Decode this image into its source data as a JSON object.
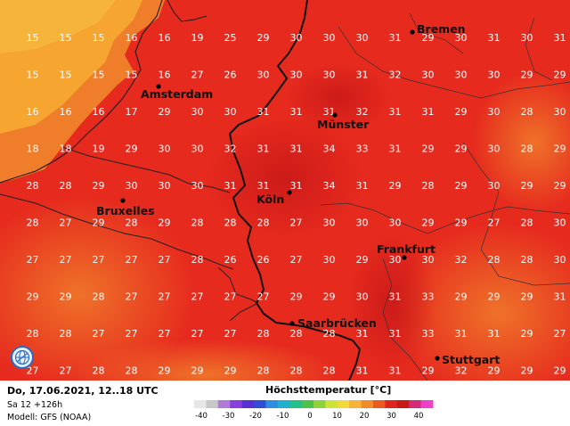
{
  "footer": {
    "date_line": "Do, 17.06.2021, 12..18 UTC",
    "run_line": "Sa 12 +126h",
    "model_line": "Modell: GFS (NOAA)"
  },
  "legend": {
    "title": "Höchsttemperatur [°C]",
    "ticks": [
      "-40",
      "-30",
      "-20",
      "-10",
      "0",
      "10",
      "20",
      "30",
      "40"
    ],
    "colors": [
      "#e6e6e6",
      "#c8c8c8",
      "#b07ad8",
      "#8a3ee0",
      "#5a2fd8",
      "#2f4ed8",
      "#2d8de0",
      "#1fb0d0",
      "#22c08a",
      "#4cc24a",
      "#8fd23a",
      "#cfe23a",
      "#f5d93a",
      "#f7b23a",
      "#f28a2a",
      "#ec5a22",
      "#e0251e",
      "#c81818",
      "#d42a78",
      "#ee40c8"
    ]
  },
  "cities": [
    {
      "name": "Bremen"
    },
    {
      "name": "Amsterdam"
    },
    {
      "name": "Münster"
    },
    {
      "name": "Köln"
    },
    {
      "name": "Bruxelles"
    },
    {
      "name": "Frankfurt"
    },
    {
      "name": "Saarbrücken"
    },
    {
      "name": "Stuttgart"
    }
  ],
  "grid_values": [
    [
      "15",
      "15",
      "15",
      "16",
      "16",
      "19",
      "25",
      "29",
      "30",
      "30",
      "30",
      "31",
      "29",
      "30",
      "31",
      "30",
      "31"
    ],
    [
      "15",
      "15",
      "15",
      "15",
      "16",
      "27",
      "26",
      "30",
      "30",
      "30",
      "31",
      "32",
      "30",
      "30",
      "30",
      "29",
      "29"
    ],
    [
      "16",
      "16",
      "16",
      "17",
      "29",
      "30",
      "30",
      "31",
      "31",
      "31",
      "32",
      "31",
      "31",
      "29",
      "30",
      "28",
      "30"
    ],
    [
      "18",
      "18",
      "19",
      "29",
      "30",
      "30",
      "32",
      "31",
      "31",
      "34",
      "33",
      "31",
      "29",
      "29",
      "30",
      "28",
      "29"
    ],
    [
      "28",
      "28",
      "29",
      "30",
      "30",
      "30",
      "31",
      "31",
      "31",
      "34",
      "31",
      "29",
      "28",
      "29",
      "30",
      "29",
      "29"
    ],
    [
      "28",
      "27",
      "29",
      "28",
      "29",
      "28",
      "28",
      "28",
      "27",
      "30",
      "30",
      "30",
      "29",
      "29",
      "27",
      "28",
      "30"
    ],
    [
      "27",
      "27",
      "27",
      "27",
      "27",
      "28",
      "26",
      "26",
      "27",
      "30",
      "29",
      "30",
      "30",
      "32",
      "28",
      "28",
      "30"
    ],
    [
      "29",
      "29",
      "28",
      "27",
      "27",
      "27",
      "27",
      "27",
      "29",
      "29",
      "30",
      "31",
      "33",
      "29",
      "29",
      "29",
      "31"
    ],
    [
      "28",
      "28",
      "27",
      "27",
      "27",
      "27",
      "27",
      "28",
      "28",
      "28",
      "31",
      "31",
      "33",
      "31",
      "31",
      "29",
      "27"
    ],
    [
      "27",
      "27",
      "28",
      "28",
      "29",
      "29",
      "29",
      "28",
      "28",
      "28",
      "31",
      "31",
      "29",
      "32",
      "29",
      "29",
      "29"
    ]
  ]
}
